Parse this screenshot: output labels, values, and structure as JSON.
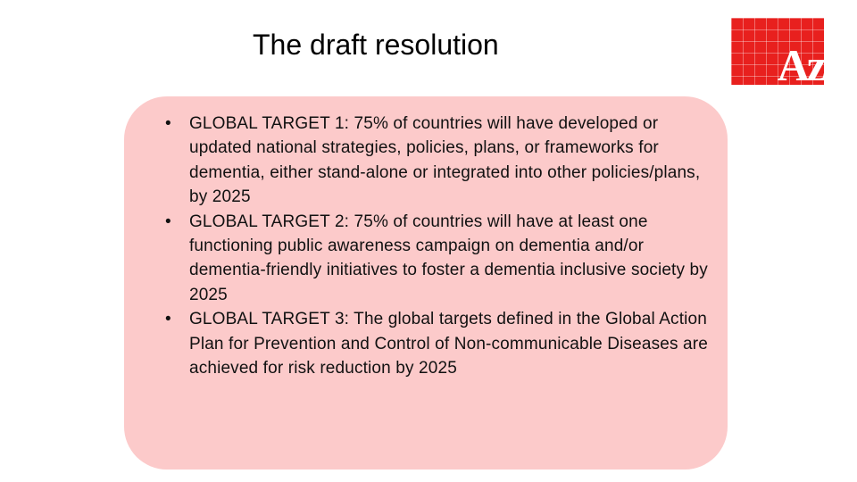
{
  "slide": {
    "title": "The draft resolution",
    "logo_text": "Az",
    "bullets": [
      {
        "marker": "•",
        "text": "GLOBAL TARGET 1: 75% of countries will have developed or updated national strategies, policies, plans, or frameworks for dementia, either stand-alone or integrated into other policies/plans, by 2025"
      },
      {
        "marker": "•",
        "text": "GLOBAL TARGET 2: 75% of countries will have at least one functioning public awareness campaign on dementia and/or dementia-friendly initiatives to foster a dementia inclusive society by 2025"
      },
      {
        "marker": "•",
        "text": "GLOBAL TARGET 3: The global targets defined in the Global Action Plan for Prevention and Control of Non-communicable Diseases are achieved for risk reduction by 2025"
      }
    ]
  },
  "colors": {
    "logo_background": "#e8201e",
    "content_box": "#fccaca",
    "text": "#111111"
  }
}
